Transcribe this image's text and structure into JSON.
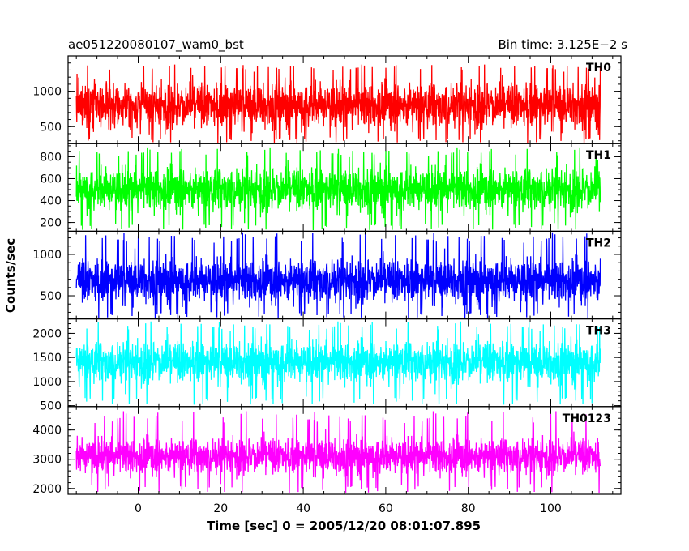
{
  "chart_data": {
    "type": "line",
    "title_left": "ae051220080107_wam0_bst",
    "title_right": "Bin time: 3.125E−2 s",
    "xlabel": "Time [sec] 0 = 2005/12/20 08:01:07.895",
    "ylabel": "Counts/sec",
    "xlim": [
      -17,
      117
    ],
    "data_x_range": [
      -15,
      112
    ],
    "x_ticks": [
      0,
      20,
      40,
      60,
      80,
      100
    ],
    "x_minor_step": 5,
    "grid": false,
    "series": [
      {
        "name": "TH0",
        "color": "#ff0000",
        "ylim": [
          260,
          1500
        ],
        "y_ticks": [
          500,
          1000
        ],
        "y_minor_step": 100,
        "mean": 800,
        "band_low": 400,
        "band_high": 1250,
        "spike_min": 270,
        "spike_max": 1380
      },
      {
        "name": "TH1",
        "color": "#00ff00",
        "ylim": [
          120,
          920
        ],
        "y_ticks": [
          200,
          400,
          600,
          800
        ],
        "y_minor_step": 50,
        "mean": 500,
        "band_low": 230,
        "band_high": 760,
        "spike_min": 130,
        "spike_max": 880
      },
      {
        "name": "TH2",
        "color": "#0000ff",
        "ylim": [
          220,
          1280
        ],
        "y_ticks": [
          500,
          1000
        ],
        "y_minor_step": 100,
        "mean": 680,
        "band_low": 350,
        "band_high": 1050,
        "spike_min": 230,
        "spike_max": 1270
      },
      {
        "name": "TH3",
        "color": "#00ffff",
        "ylim": [
          480,
          2300
        ],
        "y_ticks": [
          500,
          1000,
          1500,
          2000
        ],
        "y_minor_step": 100,
        "mean": 1400,
        "band_low": 800,
        "band_high": 1950,
        "spike_min": 520,
        "spike_max": 2250
      },
      {
        "name": "TH0123",
        "color": "#ff00ff",
        "ylim": [
          1800,
          4800
        ],
        "y_ticks": [
          2000,
          3000,
          4000
        ],
        "y_minor_step": 200,
        "mean": 3100,
        "band_low": 2300,
        "band_high": 3950,
        "spike_min": 1850,
        "spike_max": 4650
      }
    ]
  }
}
